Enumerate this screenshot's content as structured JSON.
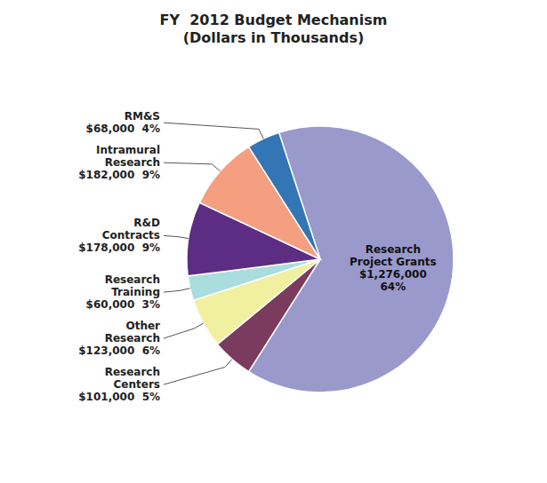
{
  "chart_data": {
    "type": "pie",
    "title": "FY  2012 Budget Mechanism\n(Dollars in Thousands)",
    "categories": [
      "Research\nProject Grants\n$1,276,000\n64%",
      "Research\nCenters\n$101,000  5%",
      "Other\nResearch\n$123,000  6%",
      "Research\nTraining\n$60,000  3%",
      "R&D\nContracts\n$178,000  9%",
      "Intramural\nResearch\n$182,000  9%",
      "RM&S\n$68,000  4%"
    ],
    "values": [
      64,
      5,
      6,
      3,
      9,
      9,
      4
    ],
    "colors": [
      "#9999CC",
      "#7B3B5E",
      "#F0F0A0",
      "#AADDDD",
      "#5C2D82",
      "#F4A080",
      "#3375B5"
    ]
  }
}
